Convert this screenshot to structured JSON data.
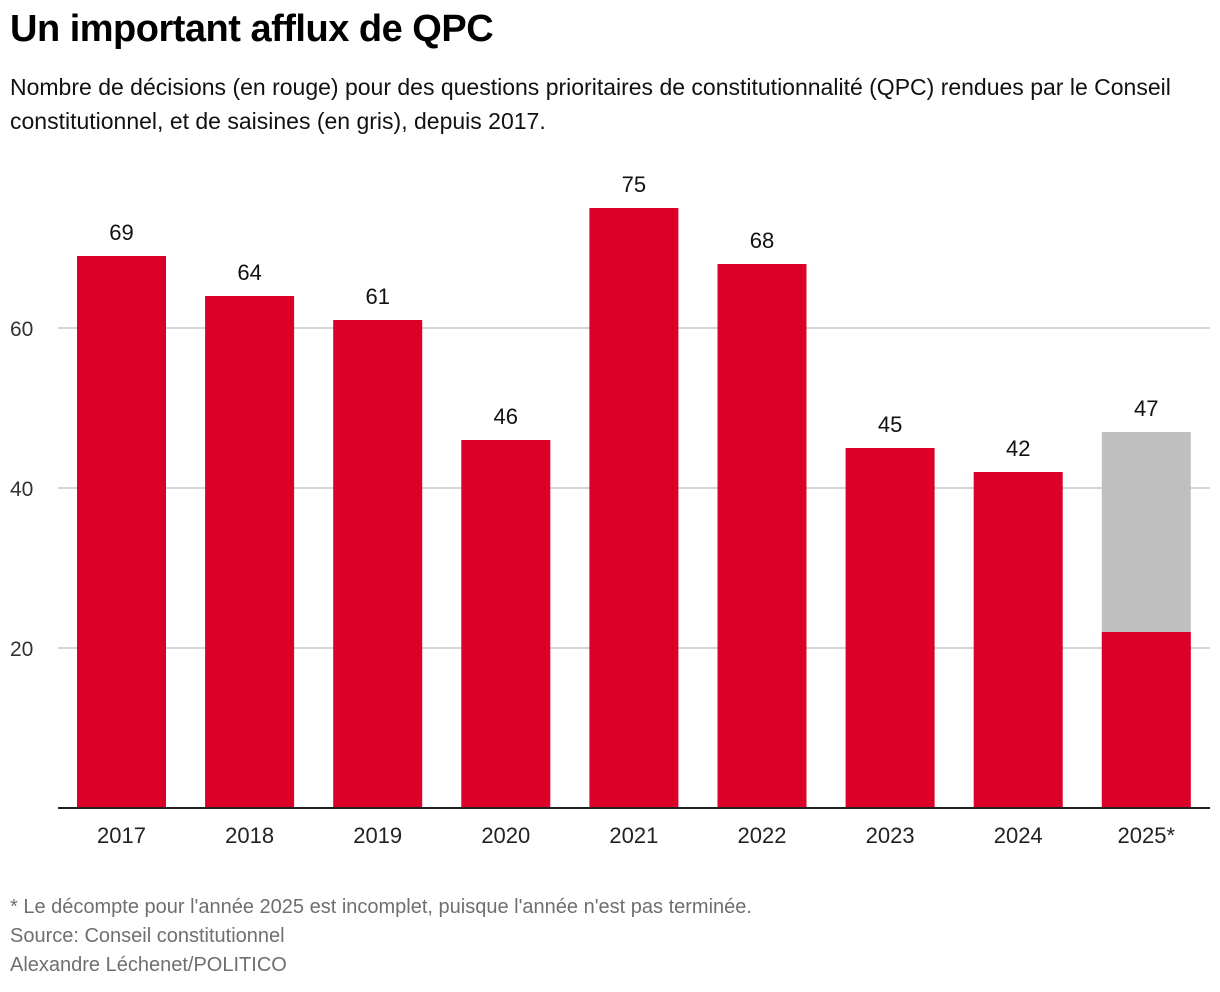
{
  "title": "Un important afflux de QPC",
  "subtitle": "Nombre de décisions (en rouge) pour des questions prioritaires de constitutionnalité (QPC) rendues par le Conseil constitutionnel, et de saisines (en gris), depuis 2017.",
  "footer": {
    "note": "* Le décompte pour l'année 2025 est incomplet, puisque l'année n'est pas terminée.",
    "source": "Source: Conseil constitutionnel",
    "credit": "Alexandre Léchenet/POLITICO"
  },
  "colors": {
    "decisions": "#dc0029",
    "saisines": "#bfbfbf",
    "grid": "#bdbdbd",
    "axis": "#222222"
  },
  "chart_data": {
    "type": "bar",
    "categories": [
      "2017",
      "2018",
      "2019",
      "2020",
      "2021",
      "2022",
      "2023",
      "2024",
      "2025*"
    ],
    "series": [
      {
        "values": [
          69,
          64,
          61,
          46,
          75,
          68,
          45,
          42,
          22
        ]
      },
      {
        "values": [
          null,
          null,
          null,
          null,
          null,
          null,
          null,
          null,
          47
        ]
      }
    ],
    "data_labels": [
      "69",
      "64",
      "61",
      "46",
      "75",
      "68",
      "45",
      "42",
      "47"
    ],
    "y_ticks": [
      20,
      40,
      60
    ],
    "ylim": [
      0,
      75
    ],
    "grid": true,
    "legend": "none"
  }
}
